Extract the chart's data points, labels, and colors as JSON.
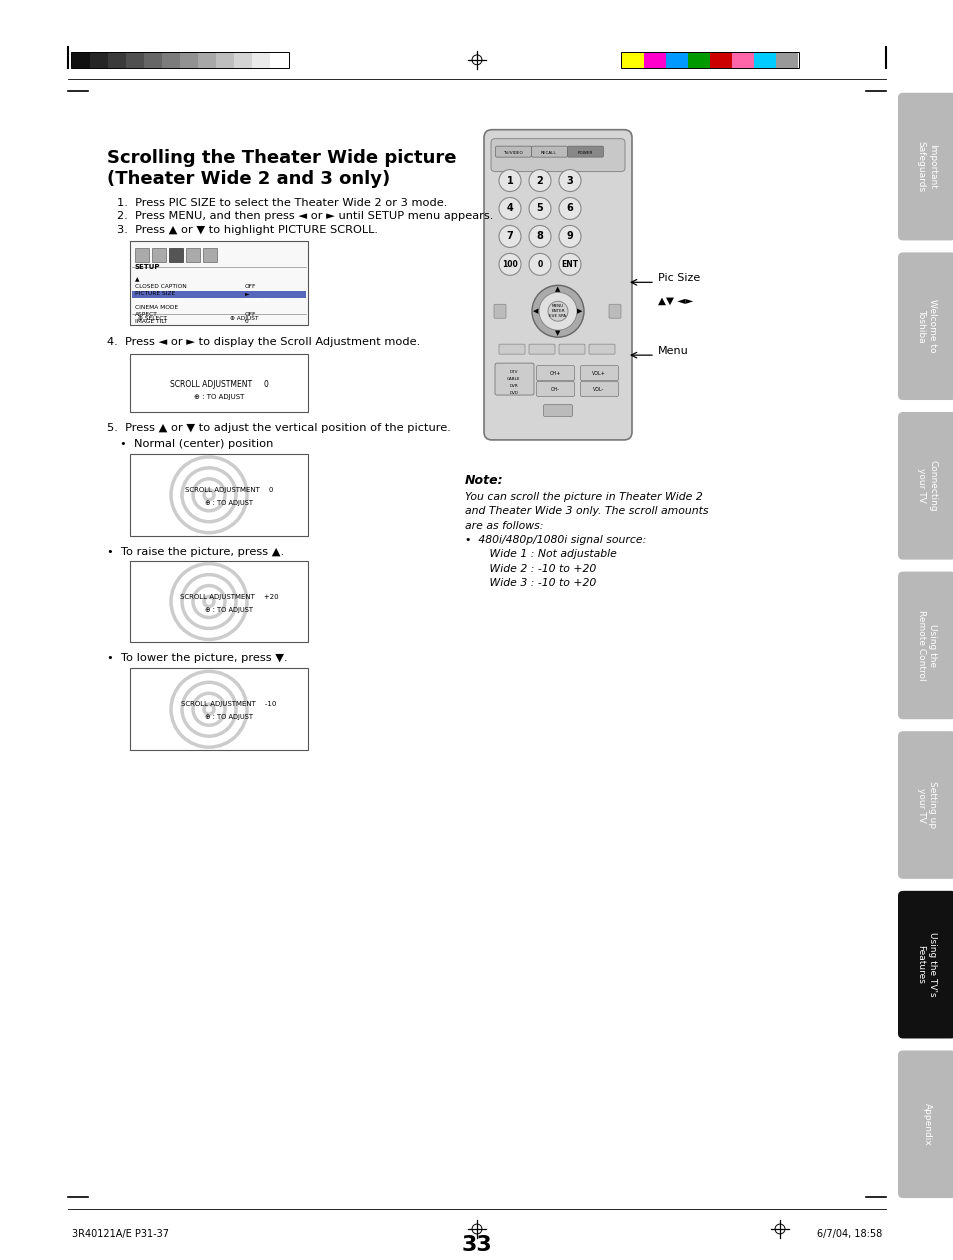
{
  "page_num": "33",
  "bg_color": "#ffffff",
  "title_line1": "Scrolling the Theater Wide picture",
  "title_line2": "(Theater Wide 2 and 3 only)",
  "steps": [
    "1.  Press PIC SIZE to select the Theater Wide 2 or 3 mode.",
    "2.  Press MENU, and then press ◄ or ► until SETUP menu appears.",
    "3.  Press ▲ or ▼ to highlight PICTURE SCROLL."
  ],
  "step4": "4.  Press ◄ or ► to display the Scroll Adjustment mode.",
  "step5_line1": "5.  Press ▲ or ▼ to adjust the vertical position of the picture.",
  "step5_line2": "•  Normal (center) position",
  "raise_text": "•  To raise the picture, press ▲.",
  "lower_text": "•  To lower the picture, press ▼.",
  "note_title": "Note:",
  "note_body": "You can scroll the picture in Theater Wide 2\nand Theater Wide 3 only. The scroll amounts\nare as follows:\n•  480i/480p/1080i signal source:\n       Wide 1 : Not adjustable\n       Wide 2 : -10 to +20\n       Wide 3 : -10 to +20",
  "pic_size_label": "Pic Size",
  "menu_label": "Menu",
  "nav_label": "▲▼ ◄►",
  "footer_left": "3R40121A/E P31-37",
  "footer_mid": "33",
  "footer_right": "6/7/04, 18:58",
  "sidebar_tabs": [
    {
      "label": "Important\nSafeguards",
      "active": false
    },
    {
      "label": "Welcome to\nToshiba",
      "active": false
    },
    {
      "label": "Connecting\nyour TV",
      "active": false
    },
    {
      "label": "Using the\nRemote Control",
      "active": false
    },
    {
      "label": "Setting up\nyour TV",
      "active": false
    },
    {
      "label": "Using the TV's\nFeatures",
      "active": true
    },
    {
      "label": "Appendix",
      "active": false
    }
  ],
  "tab_active_color": "#111111",
  "tab_inactive_color": "#b8b8b8",
  "tab_text_color_active": "#ffffff",
  "tab_text_color_inactive": "#ffffff",
  "grayscale_colors": [
    "#111111",
    "#262626",
    "#3b3b3b",
    "#505050",
    "#666666",
    "#7c7c7c",
    "#929292",
    "#a8a8a8",
    "#bebebe",
    "#d4d4d4",
    "#eaeaea",
    "#ffffff"
  ],
  "color_bars": [
    "#ffff00",
    "#ff00cc",
    "#0099ff",
    "#009900",
    "#cc0000",
    "#ff66aa",
    "#00ccff",
    "#999999"
  ]
}
